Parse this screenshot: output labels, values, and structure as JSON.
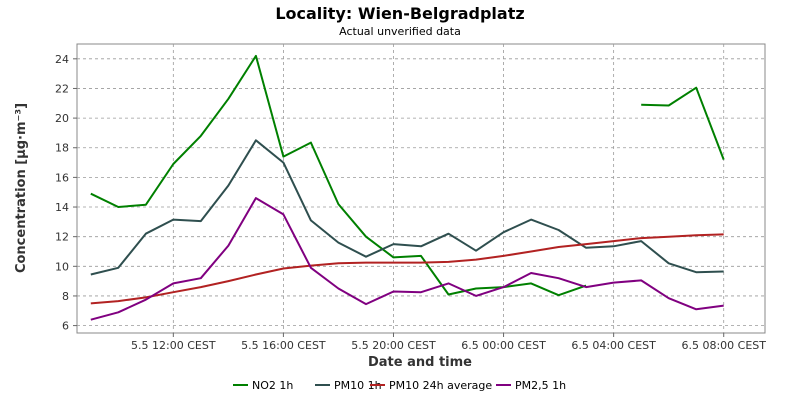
{
  "chart_data": {
    "type": "line",
    "title": "Locality: Wien-Belgradplatz",
    "subtitle": "Actual unverified data",
    "xlabel": "Date and time",
    "ylabel": "Concentration [µg·m⁻³]",
    "ylim": [
      5.5,
      25
    ],
    "yticks": [
      6,
      8,
      10,
      12,
      14,
      16,
      18,
      20,
      22,
      24
    ],
    "xticks": [
      {
        "hour": 12,
        "label": "5.5 12:00 CEST"
      },
      {
        "hour": 16,
        "label": "5.5 16:00 CEST"
      },
      {
        "hour": 20,
        "label": "5.5 20:00 CEST"
      },
      {
        "hour": 24,
        "label": "6.5 00:00 CEST"
      },
      {
        "hour": 28,
        "label": "6.5 04:00 CEST"
      },
      {
        "hour": 32,
        "label": "6.5 08:00 CEST"
      }
    ],
    "x_unit": "hour of 5.5 (CEST)",
    "x": [
      9,
      10,
      11,
      12,
      13,
      14,
      15,
      16,
      17,
      18,
      19,
      20,
      21,
      22,
      23,
      24,
      25,
      26,
      27,
      28,
      29,
      30,
      31,
      32,
      33
    ],
    "xlim": [
      8.5,
      33.5
    ],
    "grid": true,
    "legend_position": "bottom",
    "series": [
      {
        "name": "NO2 1h",
        "color": "#008000",
        "values": [
          14.9,
          14.0,
          14.15,
          16.9,
          18.8,
          21.3,
          24.2,
          17.4,
          18.35,
          14.2,
          12.0,
          10.6,
          10.7,
          8.1,
          8.5,
          8.6,
          8.85,
          8.05,
          8.7,
          null,
          20.9,
          20.85,
          22.05,
          17.2,
          null
        ]
      },
      {
        "name": "PM10 1h",
        "color": "#2f4f4f",
        "values": [
          9.45,
          9.9,
          12.2,
          13.15,
          13.05,
          15.45,
          18.5,
          17.0,
          13.1,
          11.6,
          10.65,
          11.5,
          11.35,
          12.2,
          11.05,
          12.3,
          13.15,
          12.45,
          11.25,
          11.35,
          11.7,
          10.2,
          9.6,
          9.65,
          null
        ]
      },
      {
        "name": "PM10 24h average",
        "color": "#b22222",
        "values": [
          7.5,
          7.65,
          7.9,
          8.25,
          8.6,
          9.0,
          9.45,
          9.85,
          10.05,
          10.2,
          10.25,
          10.25,
          10.25,
          10.3,
          10.45,
          10.7,
          11.0,
          11.3,
          11.5,
          11.7,
          11.9,
          12.0,
          12.1,
          12.15,
          null
        ]
      },
      {
        "name": "PM2,5 1h",
        "color": "#800080",
        "values": [
          6.4,
          6.9,
          7.75,
          8.85,
          9.2,
          11.4,
          14.6,
          13.5,
          9.9,
          8.5,
          7.45,
          8.3,
          8.25,
          8.85,
          8.0,
          8.6,
          9.55,
          9.2,
          8.6,
          8.9,
          9.05,
          7.85,
          7.1,
          7.35,
          null
        ]
      }
    ]
  }
}
